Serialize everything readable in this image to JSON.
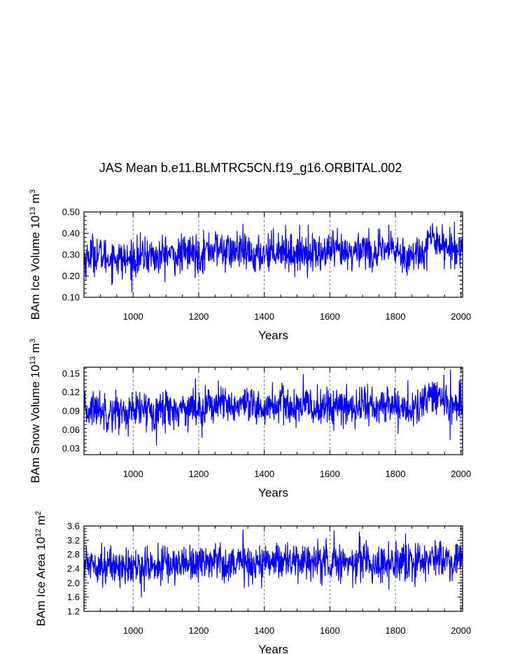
{
  "title": "JAS Mean b.e11.BLMTRC5CN.f19_g16.ORBITAL.002",
  "line_color": "#0000ff",
  "chart_data": [
    {
      "type": "line",
      "xlabel": "Years",
      "ylabel": "BAm Ice Volume 10",
      "ylabel_sup": "13",
      "ylabel_unit": " m",
      "ylabel_unit_sup": "3",
      "xlim": [
        850,
        2005
      ],
      "ylim": [
        0.1,
        0.5
      ],
      "x_ticks": [
        "1000",
        "1200",
        "1400",
        "1600",
        "1800",
        "2000"
      ],
      "y_ticks": [
        "0.10",
        "0.20",
        "0.30",
        "0.40",
        "0.50"
      ],
      "grid": "vertical-dashed",
      "series": [
        {
          "x": [
            850,
            875,
            900,
            925,
            950,
            975,
            1000,
            1025,
            1050,
            1075,
            1100,
            1125,
            1150,
            1175,
            1200,
            1225,
            1250,
            1275,
            1300,
            1325,
            1350,
            1375,
            1400,
            1425,
            1450,
            1475,
            1500,
            1525,
            1550,
            1575,
            1600,
            1625,
            1650,
            1675,
            1700,
            1725,
            1750,
            1775,
            1800,
            1825,
            1850,
            1875,
            1900,
            1925,
            1950,
            1975,
            2000
          ],
          "y": [
            0.27,
            0.31,
            0.3,
            0.28,
            0.29,
            0.27,
            0.28,
            0.29,
            0.3,
            0.28,
            0.31,
            0.29,
            0.3,
            0.31,
            0.3,
            0.32,
            0.33,
            0.32,
            0.31,
            0.32,
            0.3,
            0.29,
            0.31,
            0.32,
            0.33,
            0.31,
            0.3,
            0.32,
            0.31,
            0.3,
            0.32,
            0.31,
            0.3,
            0.31,
            0.34,
            0.31,
            0.3,
            0.33,
            0.32,
            0.3,
            0.29,
            0.31,
            0.36,
            0.38,
            0.34,
            0.32,
            0.34
          ]
        }
      ]
    },
    {
      "type": "line",
      "xlabel": "Years",
      "ylabel": "BAm Snow Volume 10",
      "ylabel_sup": "13",
      "ylabel_unit": " m",
      "ylabel_unit_sup": "3",
      "xlim": [
        850,
        2005
      ],
      "ylim": [
        0.02,
        0.16
      ],
      "x_ticks": [
        "1000",
        "1200",
        "1400",
        "1600",
        "1800",
        "2000"
      ],
      "y_ticks": [
        "0.03",
        "0.06",
        "0.09",
        "0.12",
        "0.15"
      ],
      "grid": "vertical-dashed",
      "series": [
        {
          "x": [
            850,
            875,
            900,
            925,
            950,
            975,
            1000,
            1025,
            1050,
            1075,
            1100,
            1125,
            1150,
            1175,
            1200,
            1225,
            1250,
            1275,
            1300,
            1325,
            1350,
            1375,
            1400,
            1425,
            1450,
            1475,
            1500,
            1525,
            1550,
            1575,
            1600,
            1625,
            1650,
            1675,
            1700,
            1725,
            1750,
            1775,
            1800,
            1825,
            1850,
            1875,
            1900,
            1925,
            1950,
            1975,
            2000
          ],
          "y": [
            0.085,
            0.095,
            0.093,
            0.088,
            0.09,
            0.086,
            0.088,
            0.091,
            0.094,
            0.089,
            0.096,
            0.091,
            0.094,
            0.097,
            0.093,
            0.099,
            0.101,
            0.099,
            0.096,
            0.099,
            0.094,
            0.091,
            0.096,
            0.099,
            0.102,
            0.096,
            0.094,
            0.099,
            0.096,
            0.094,
            0.099,
            0.096,
            0.094,
            0.096,
            0.104,
            0.096,
            0.094,
            0.102,
            0.099,
            0.094,
            0.091,
            0.096,
            0.11,
            0.118,
            0.104,
            0.099,
            0.104
          ]
        }
      ]
    },
    {
      "type": "line",
      "xlabel": "Years",
      "ylabel": "BAm Ice Area 10",
      "ylabel_sup": "12",
      "ylabel_unit": " m",
      "ylabel_unit_sup": "2",
      "xlim": [
        850,
        2005
      ],
      "ylim": [
        1.2,
        3.6
      ],
      "x_ticks": [
        "1000",
        "1200",
        "1400",
        "1600",
        "1800",
        "2000"
      ],
      "y_ticks": [
        "1.2",
        "1.6",
        "2.0",
        "2.4",
        "2.8",
        "3.2",
        "3.6"
      ],
      "grid": "vertical-dashed",
      "series": [
        {
          "x": [
            850,
            875,
            900,
            925,
            950,
            975,
            1000,
            1025,
            1050,
            1075,
            1100,
            1125,
            1150,
            1175,
            1200,
            1225,
            1250,
            1275,
            1300,
            1325,
            1350,
            1375,
            1400,
            1425,
            1450,
            1475,
            1500,
            1525,
            1550,
            1575,
            1600,
            1625,
            1650,
            1675,
            1700,
            1725,
            1750,
            1775,
            1800,
            1825,
            1850,
            1875,
            1900,
            1925,
            1950,
            1975,
            2000
          ],
          "y": [
            2.5,
            2.6,
            2.55,
            2.45,
            2.5,
            2.45,
            2.4,
            2.45,
            2.5,
            2.45,
            2.55,
            2.5,
            2.55,
            2.6,
            2.55,
            2.6,
            2.65,
            2.6,
            2.55,
            2.6,
            2.55,
            2.5,
            2.6,
            2.65,
            2.7,
            2.6,
            2.55,
            2.65,
            2.6,
            2.55,
            2.65,
            2.6,
            2.55,
            2.6,
            2.7,
            2.55,
            2.5,
            2.6,
            2.55,
            2.5,
            2.55,
            2.6,
            2.65,
            2.7,
            2.65,
            2.6,
            2.65
          ]
        }
      ]
    }
  ]
}
